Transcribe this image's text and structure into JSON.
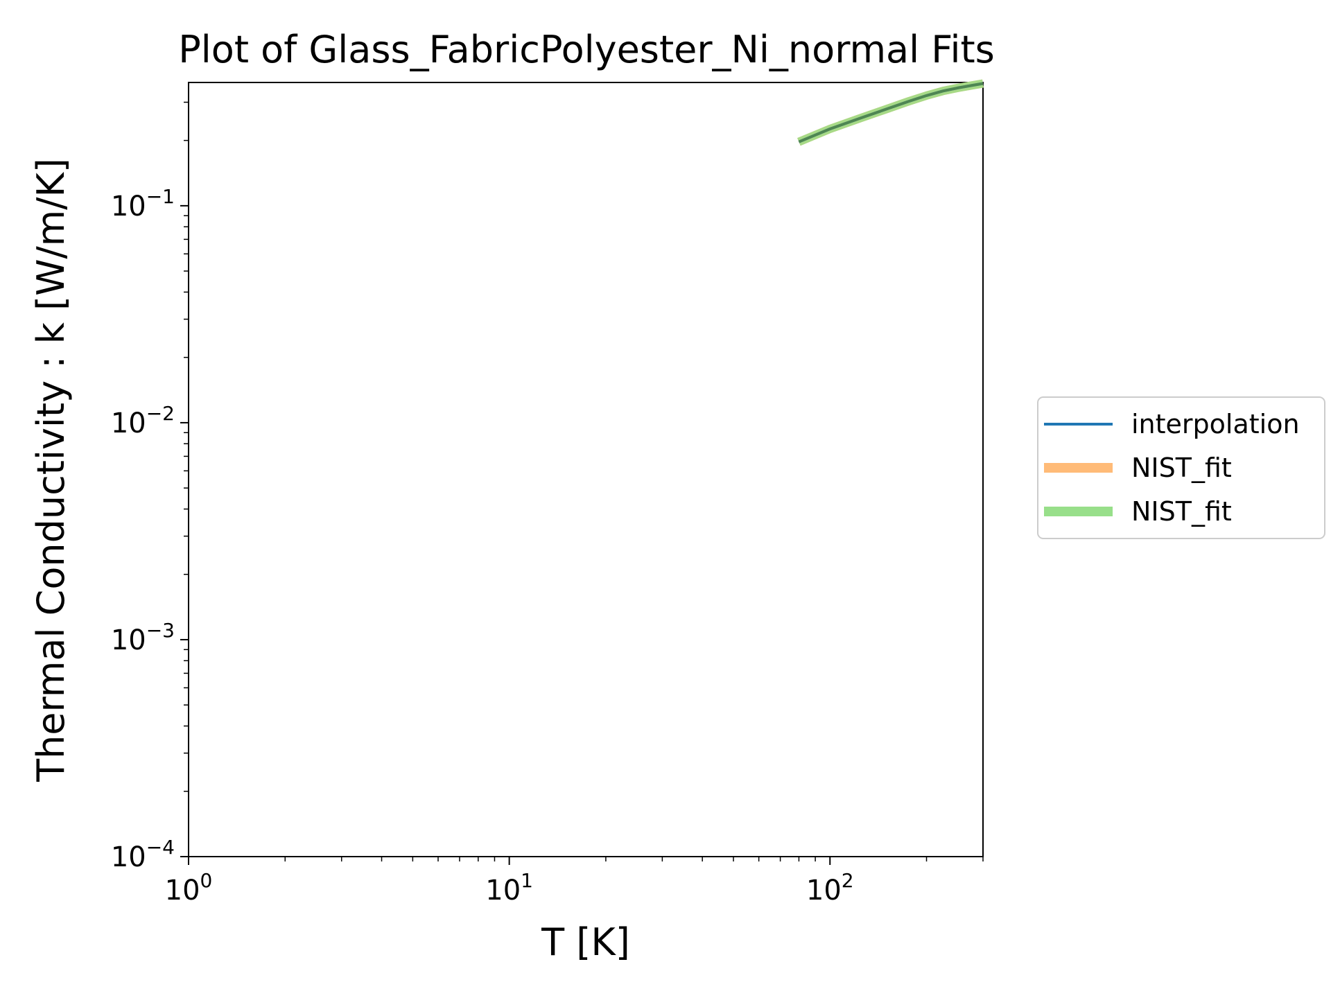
{
  "chart_data": {
    "type": "line",
    "title": "Plot of Glass_FabricPolyester_Ni_normal Fits",
    "xlabel": "T [K]",
    "ylabel": "Thermal Conductivity : k [W/m/K]",
    "xscale": "log",
    "yscale": "log",
    "xlim": [
      1,
      300
    ],
    "ylim": [
      0.0001,
      0.37
    ],
    "x_ticks": [
      {
        "base": "10",
        "exp": "0",
        "value": 1
      },
      {
        "base": "10",
        "exp": "1",
        "value": 10
      },
      {
        "base": "10",
        "exp": "2",
        "value": 100
      }
    ],
    "y_ticks": [
      {
        "base": "10",
        "exp": "−4",
        "value": 0.0001
      },
      {
        "base": "10",
        "exp": "−3",
        "value": 0.001
      },
      {
        "base": "10",
        "exp": "−2",
        "value": 0.01
      },
      {
        "base": "10",
        "exp": "−1",
        "value": 0.1
      }
    ],
    "grid": false,
    "legend_position": "right, outside",
    "series": [
      {
        "name": "interpolation",
        "color": "#1f77b4",
        "x": [
          80,
          100,
          125,
          150,
          175,
          200,
          225,
          250,
          275,
          300
        ],
        "y": [
          0.197,
          0.226,
          0.254,
          0.279,
          0.302,
          0.322,
          0.338,
          0.349,
          0.358,
          0.366
        ]
      },
      {
        "name": "NIST_fit",
        "color": "#ffbb78",
        "x": [
          80,
          100,
          125,
          150,
          175,
          200,
          225,
          250,
          275,
          300
        ],
        "y": [
          0.197,
          0.226,
          0.254,
          0.279,
          0.302,
          0.322,
          0.338,
          0.349,
          0.358,
          0.366
        ]
      },
      {
        "name": "NIST_fit",
        "color": "#98df8a",
        "x": [
          80,
          100,
          125,
          150,
          175,
          200,
          225,
          250,
          275,
          300
        ],
        "y": [
          0.197,
          0.226,
          0.254,
          0.279,
          0.302,
          0.322,
          0.338,
          0.349,
          0.358,
          0.366
        ]
      }
    ]
  }
}
